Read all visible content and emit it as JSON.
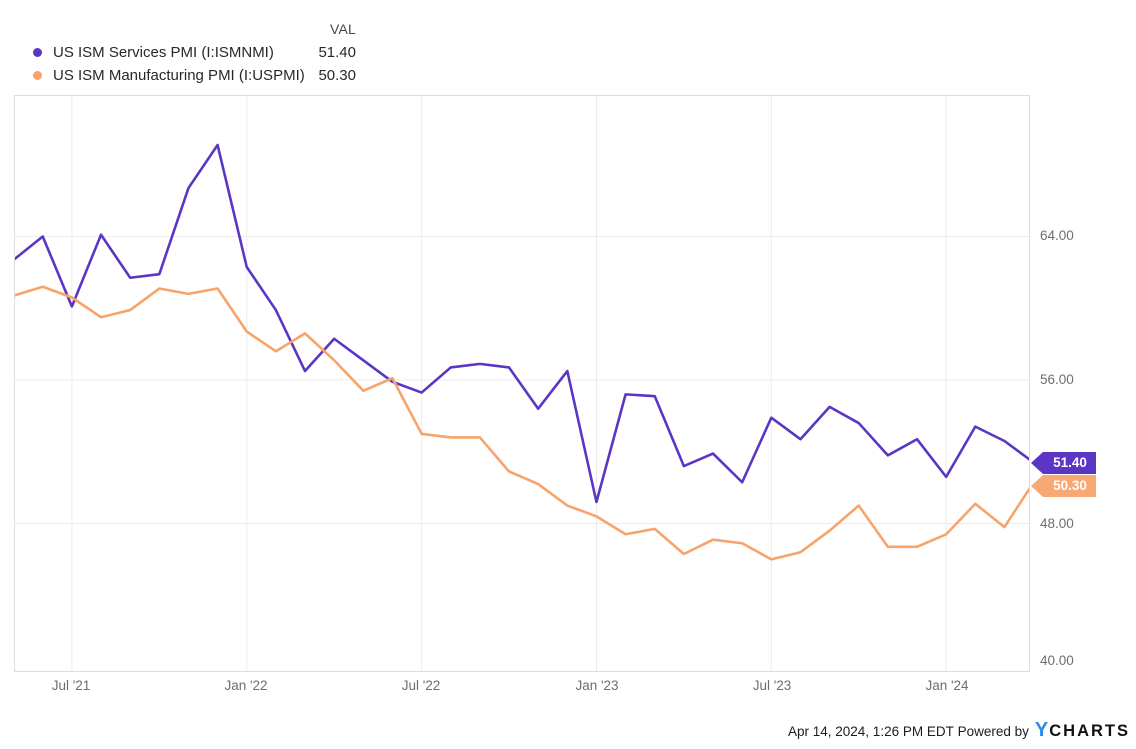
{
  "legend": {
    "val_header": "VAL",
    "items": [
      {
        "label": "US ISM Services PMI (I:ISMNMI)",
        "value": "51.40",
        "color": "#5b35c4"
      },
      {
        "label": "US ISM Manufacturing PMI (I:USPMI)",
        "value": "50.30",
        "color": "#f7a36a"
      }
    ]
  },
  "chart_data": {
    "type": "line",
    "title": "",
    "x": [
      "Apr '21",
      "May '21",
      "Jun '21",
      "Jul '21",
      "Aug '21",
      "Sep '21",
      "Oct '21",
      "Nov '21",
      "Dec '21",
      "Jan '22",
      "Feb '22",
      "Mar '22",
      "Apr '22",
      "May '22",
      "Jun '22",
      "Jul '22",
      "Aug '22",
      "Sep '22",
      "Oct '22",
      "Nov '22",
      "Dec '22",
      "Jan '23",
      "Feb '23",
      "Mar '23",
      "Apr '23",
      "May '23",
      "Jun '23",
      "Jul '23",
      "Aug '23",
      "Sep '23",
      "Oct '23",
      "Nov '23",
      "Dec '23",
      "Jan '24",
      "Feb '24",
      "Mar '24"
    ],
    "series": [
      {
        "name": "US ISM Services PMI (I:ISMNMI)",
        "color": "#5b35c4",
        "values": [
          62.7,
          64.0,
          60.1,
          64.1,
          61.7,
          61.9,
          66.7,
          69.1,
          62.3,
          59.9,
          56.5,
          58.3,
          57.1,
          55.9,
          55.3,
          56.7,
          56.9,
          56.7,
          54.4,
          56.5,
          49.2,
          55.2,
          55.1,
          51.2,
          51.9,
          50.3,
          53.9,
          52.7,
          54.5,
          53.6,
          51.8,
          52.7,
          50.6,
          53.4,
          52.6,
          51.4
        ]
      },
      {
        "name": "US ISM Manufacturing PMI (I:USPMI)",
        "color": "#f7a36a",
        "values": [
          60.7,
          61.2,
          60.6,
          59.5,
          59.9,
          61.1,
          60.8,
          61.1,
          58.7,
          57.6,
          58.6,
          57.1,
          55.4,
          56.1,
          53.0,
          52.8,
          52.8,
          50.9,
          50.2,
          49.0,
          48.4,
          47.4,
          47.7,
          46.3,
          47.1,
          46.9,
          46.0,
          46.4,
          47.6,
          49.0,
          46.7,
          46.7,
          47.4,
          49.1,
          47.8,
          50.3
        ]
      }
    ],
    "x_tick_labels": [
      "Jul '21",
      "Jan '22",
      "Jul '22",
      "Jan '23",
      "Jul '23",
      "Jan '24"
    ],
    "y_tick_labels": [
      "64.00",
      "56.00",
      "48.00",
      "40.00"
    ],
    "y_tick_values": [
      64,
      56,
      48,
      40
    ],
    "ylim": [
      39.8,
      71.8
    ],
    "grid": true,
    "legend_position": "top-left",
    "end_labels": [
      {
        "text": "51.40",
        "color": "#5b35c4"
      },
      {
        "text": "50.30",
        "color": "#f8a873"
      }
    ]
  },
  "footer": {
    "timestamp": "Apr 14, 2024, 1:26 PM EDT",
    "powered_by": "Powered by",
    "logo_y": "Y",
    "logo_charts": "CHARTS"
  }
}
